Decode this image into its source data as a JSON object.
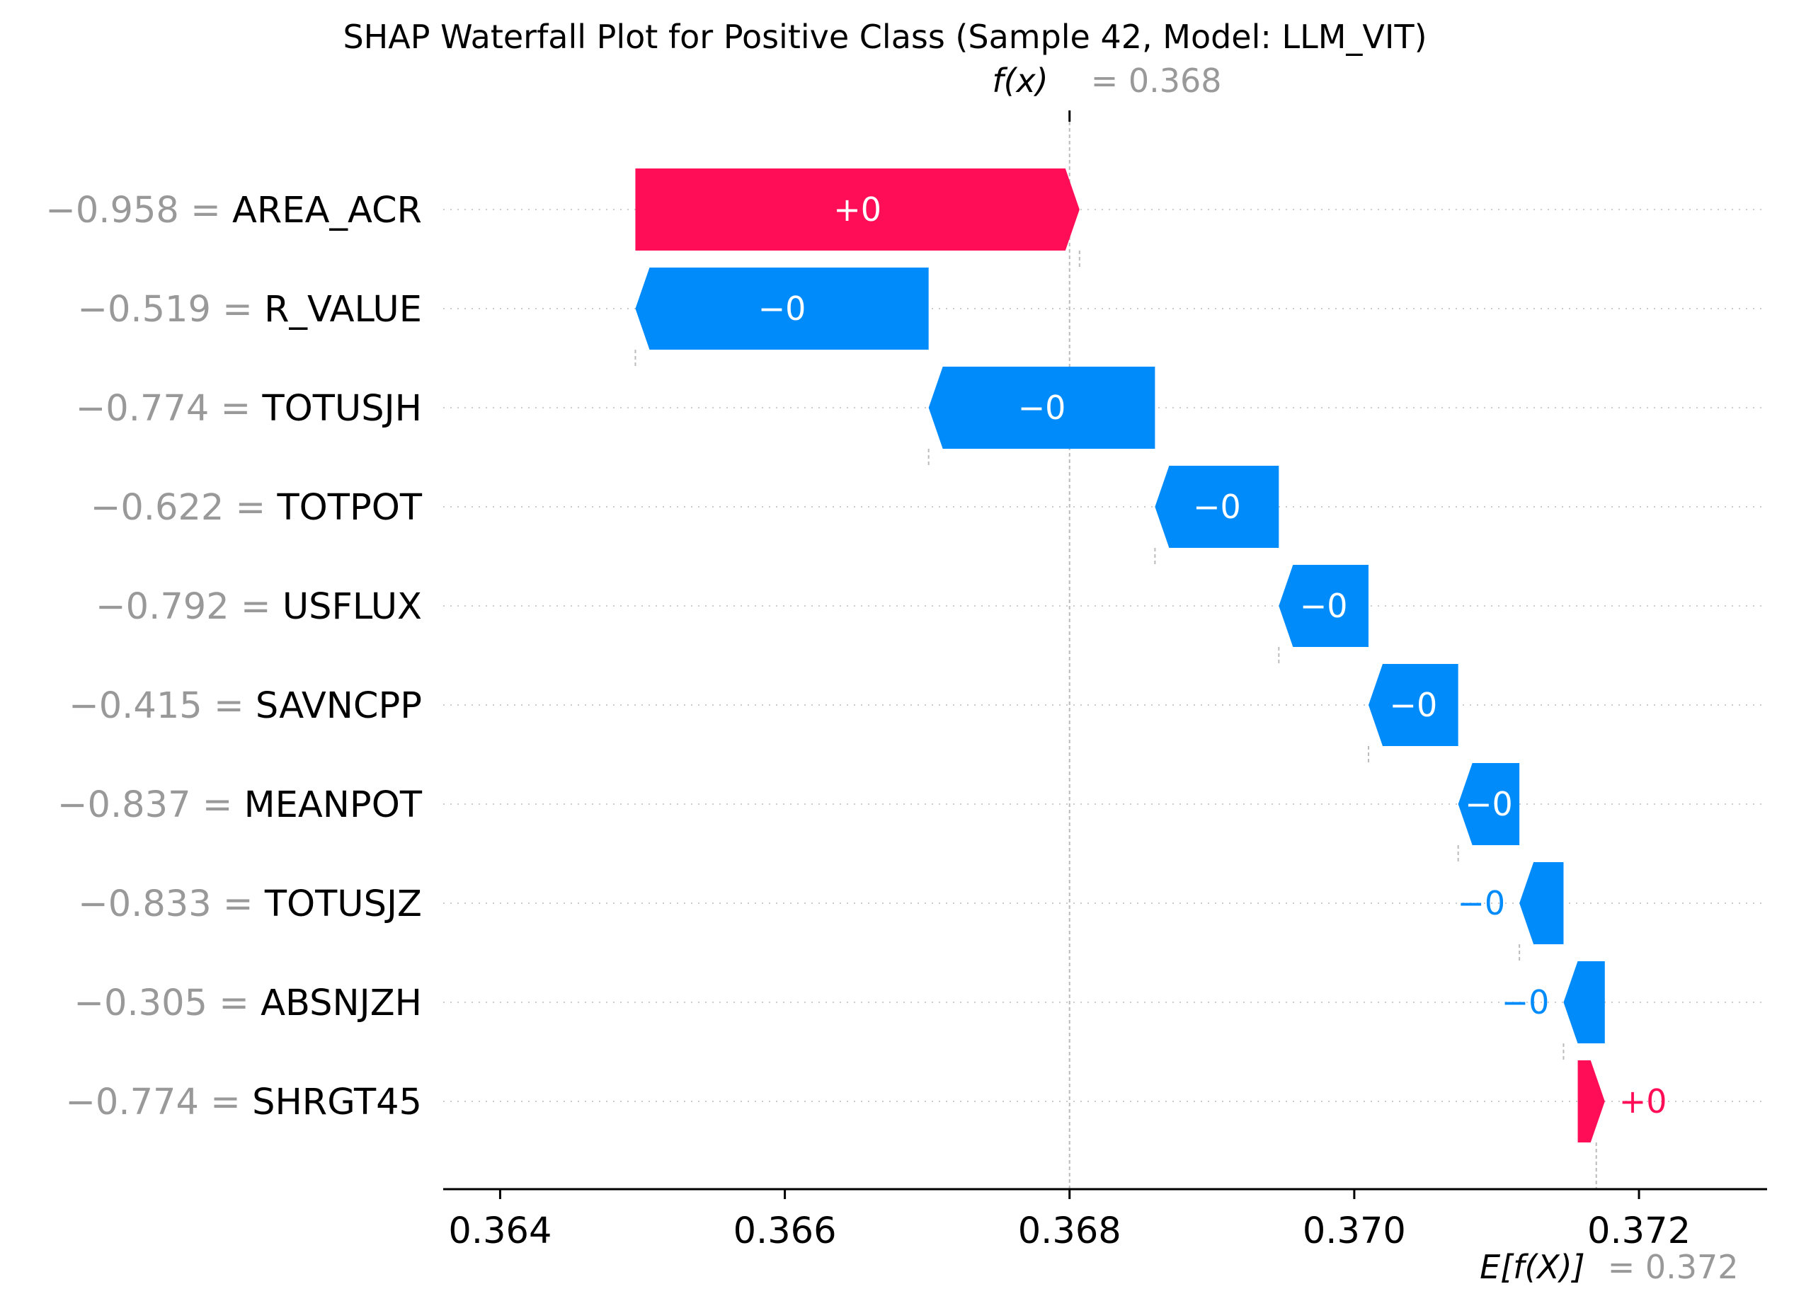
{
  "chart_data": {
    "type": "waterfall",
    "title": "SHAP Waterfall Plot for Positive Class (Sample 42, Model: LLM_VIT)",
    "fx_label": "f(x)",
    "fx_value_text": "= 0.368",
    "fx": 0.368,
    "ex_label": "E[f(X)]",
    "ex_value_text": "= 0.372",
    "expected_value": 0.3717,
    "xlim": [
      0.3636,
      0.3729
    ],
    "ticks": [
      0.364,
      0.366,
      0.368,
      0.37,
      0.372
    ],
    "tick_labels": [
      "0.364",
      "0.366",
      "0.368",
      "0.370",
      "0.372"
    ],
    "positive_color": "#ff0d57",
    "negative_color": "#008bfb",
    "features": [
      {
        "value_text": "−0.958 =",
        "name": "AREA_ACR",
        "start": 0.36495,
        "end": 0.36807,
        "label": "+0"
      },
      {
        "value_text": "−0.519 =",
        "name": "R_VALUE",
        "start": 0.36701,
        "end": 0.36495,
        "label": "−0"
      },
      {
        "value_text": "−0.774 =",
        "name": "TOTUSJH",
        "start": 0.3686,
        "end": 0.36701,
        "label": "−0"
      },
      {
        "value_text": "−0.622 =",
        "name": "TOTPOT",
        "start": 0.36947,
        "end": 0.3686,
        "label": "−0"
      },
      {
        "value_text": "−0.792 =",
        "name": "USFLUX",
        "start": 0.3701,
        "end": 0.36947,
        "label": "−0"
      },
      {
        "value_text": "−0.415 =",
        "name": "SAVNCPP",
        "start": 0.37073,
        "end": 0.3701,
        "label": "−0"
      },
      {
        "value_text": "−0.837 =",
        "name": "MEANPOT",
        "start": 0.37116,
        "end": 0.37073,
        "label": "−0"
      },
      {
        "value_text": "−0.833 =",
        "name": "TOTUSJZ",
        "start": 0.37147,
        "end": 0.37116,
        "label": "−0"
      },
      {
        "value_text": "−0.305 =",
        "name": "ABSNJZH",
        "start": 0.37176,
        "end": 0.37147,
        "label": "−0"
      },
      {
        "value_text": "−0.774 =",
        "name": "SHRGT45",
        "start": 0.37157,
        "end": 0.37176,
        "label": "+0"
      }
    ]
  }
}
